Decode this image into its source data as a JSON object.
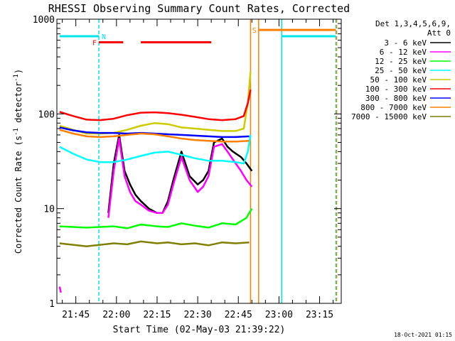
{
  "chart_data": {
    "type": "line",
    "title": "RHESSI Observing Summary Count Rates, Corrected",
    "xlabel": "Start Time (02-May-03 21:39:22)",
    "ylabel_main": "Corrected Count Rate (s",
    "ylabel_sup1": "-1",
    "ylabel_mid": " detector",
    "ylabel_sup2": "-1",
    "ylabel_end": ")",
    "y_scale": "log",
    "ylim": [
      1,
      1000
    ],
    "xlim_minutes": [
      -1,
      104
    ],
    "y_ticks": [
      {
        "value": 1,
        "label": "1"
      },
      {
        "value": 10,
        "label": "10"
      },
      {
        "value": 100,
        "label": "100"
      },
      {
        "value": 1000,
        "label": "1000"
      }
    ],
    "x_ticks": [
      {
        "minutes": 6,
        "label": "21:45"
      },
      {
        "minutes": 21,
        "label": "22:00"
      },
      {
        "minutes": 36,
        "label": "22:15"
      },
      {
        "minutes": 51,
        "label": "22:30"
      },
      {
        "minutes": 66,
        "label": "22:45"
      },
      {
        "minutes": 81,
        "label": "23:00"
      },
      {
        "minutes": 96,
        "label": "23:15"
      }
    ],
    "legend_title_1": "Det 1,3,4,5,6,9,",
    "legend_title_2": "Att 0",
    "series": [
      {
        "name": "3 - 6 keV",
        "color": "#000000",
        "x": [
          0,
          5,
          10,
          15,
          18,
          20,
          22,
          24,
          26,
          28,
          30,
          33,
          36,
          38,
          40,
          42,
          45,
          48,
          51,
          53,
          55,
          57,
          60,
          62,
          64,
          67,
          69,
          71
        ],
        "y": [
          null,
          null,
          null,
          null,
          9,
          30,
          60,
          25,
          18,
          14,
          12,
          10,
          9,
          9,
          12,
          20,
          40,
          22,
          18,
          20,
          25,
          50,
          55,
          45,
          40,
          35,
          30,
          25
        ]
      },
      {
        "name": "6 - 12 keV",
        "color": "#ff00ff",
        "x": [
          0,
          0.5,
          1,
          18,
          20,
          22,
          24,
          26,
          28,
          30,
          33,
          36,
          38,
          40,
          42,
          45,
          48,
          51,
          53,
          55,
          57,
          60,
          62,
          64,
          67,
          69,
          71
        ],
        "y": [
          1.5,
          1.3,
          null,
          8,
          25,
          55,
          22,
          15,
          12,
          11,
          9.5,
          9,
          9,
          11,
          18,
          35,
          20,
          15,
          17,
          22,
          45,
          48,
          40,
          33,
          25,
          20,
          17
        ]
      },
      {
        "name": "12 - 25 keV",
        "color": "#00ff00",
        "x": [
          0,
          10,
          20,
          25,
          30,
          36,
          40,
          45,
          50,
          55,
          60,
          65,
          69,
          70,
          71
        ],
        "y": [
          6.5,
          6.3,
          6.5,
          6.2,
          6.8,
          6.5,
          6.4,
          7.0,
          6.6,
          6.3,
          7.0,
          6.8,
          8,
          9,
          10
        ]
      },
      {
        "name": "25 - 50 keV",
        "color": "#00ffff",
        "x": [
          0,
          5,
          10,
          15,
          20,
          25,
          30,
          35,
          40,
          45,
          50,
          55,
          60,
          65,
          68,
          69.5,
          70.5
        ],
        "y": [
          45,
          38,
          33,
          31,
          31,
          33,
          36,
          39,
          40,
          37,
          34,
          32,
          32,
          31,
          30,
          40,
          60
        ]
      },
      {
        "name": "50 - 100 keV",
        "color": "#cccc00",
        "x": [
          0,
          5,
          10,
          15,
          20,
          25,
          30,
          35,
          40,
          45,
          50,
          55,
          60,
          65,
          68,
          69.5,
          70.5
        ],
        "y": [
          75,
          68,
          62,
          62,
          63,
          68,
          75,
          80,
          78,
          72,
          70,
          68,
          66,
          66,
          70,
          130,
          280
        ]
      },
      {
        "name": "100 - 300 keV",
        "color": "#ff0000",
        "x": [
          0,
          5,
          10,
          15,
          20,
          25,
          30,
          35,
          40,
          45,
          50,
          55,
          60,
          65,
          68,
          69.5,
          70.5
        ],
        "y": [
          105,
          95,
          87,
          86,
          89,
          97,
          103,
          104,
          102,
          98,
          93,
          88,
          86,
          88,
          95,
          130,
          180
        ]
      },
      {
        "name": "300 - 800 keV",
        "color": "#0000ff",
        "x": [
          0,
          5,
          10,
          15,
          20,
          25,
          30,
          35,
          40,
          45,
          50,
          55,
          60,
          65,
          70
        ],
        "y": [
          72,
          67,
          64,
          63,
          63,
          62,
          63,
          62,
          61,
          60,
          59,
          58,
          57,
          57,
          58
        ]
      },
      {
        "name": "800 - 7000 keV",
        "color": "#ff7f00",
        "x": [
          0,
          5,
          10,
          15,
          20,
          25,
          30,
          35,
          40,
          45,
          50,
          55,
          60,
          65,
          70
        ],
        "y": [
          68,
          62,
          58,
          57,
          58,
          60,
          62,
          61,
          58,
          55,
          53,
          52,
          51,
          51,
          52
        ]
      },
      {
        "name": "7000 - 15000 keV",
        "color": "#7f7f00",
        "x": [
          0,
          10,
          20,
          25,
          30,
          36,
          40,
          45,
          50,
          55,
          60,
          65,
          70
        ],
        "y": [
          4.3,
          4.0,
          4.3,
          4.2,
          4.5,
          4.3,
          4.4,
          4.2,
          4.3,
          4.1,
          4.4,
          4.3,
          4.4
        ]
      }
    ],
    "indicators": [
      {
        "label": "N",
        "color": "#00e5e5",
        "segments": [
          [
            0,
            14.5
          ],
          [
            82,
            102
          ]
        ],
        "y": 660
      },
      {
        "label": "F",
        "color": "#ff0000",
        "segments": [
          [
            14.5,
            23.5
          ],
          [
            30,
            56
          ]
        ],
        "y": 570
      },
      {
        "label": "S",
        "color": "#ff7f00",
        "segments": [
          [
            73.5,
            102
          ]
        ],
        "y": 770
      }
    ],
    "markers": [
      {
        "minutes": 14.5,
        "color": "#00e5e5",
        "style": "dash"
      },
      {
        "minutes": 70.5,
        "color": "#ff7f00",
        "style": "solid"
      },
      {
        "minutes": 73.5,
        "color": "#ff7f00",
        "style": "solid"
      },
      {
        "minutes": 82,
        "color": "#00e5e5",
        "style": "solid"
      },
      {
        "minutes": 102,
        "color": "#00e5e5",
        "style": "dash"
      },
      {
        "minutes": 102.3,
        "color": "#ff7f00",
        "style": "dash"
      }
    ],
    "footer": "18-Oct-2021 01:15"
  }
}
